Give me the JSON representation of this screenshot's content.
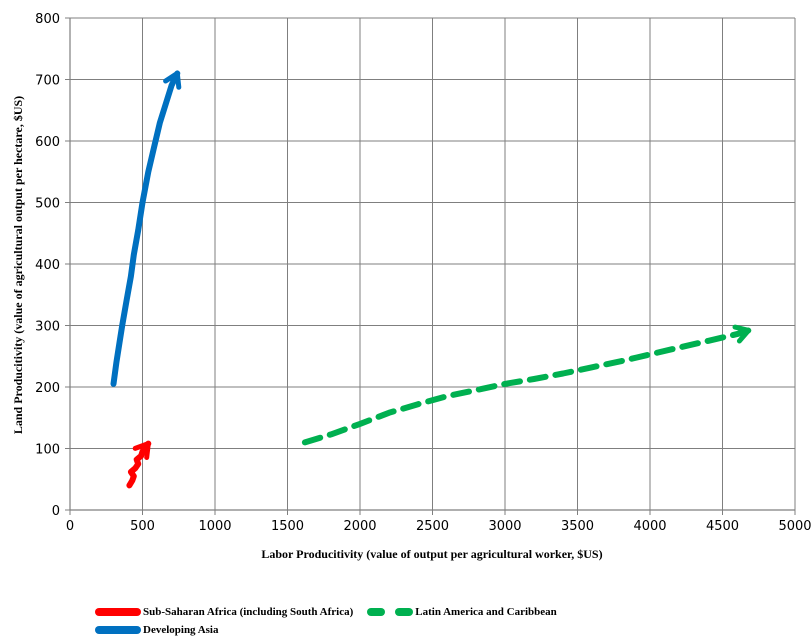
{
  "chart_data": {
    "type": "line",
    "xlabel": "Labor Producitivity (value of output per agricultural worker, $US)",
    "ylabel": "Land Producitivity (value of agricultural output per hectare, $US)",
    "xlim": [
      0,
      5000
    ],
    "ylim": [
      0,
      800
    ],
    "x_ticks": [
      0,
      500,
      1000,
      1500,
      2000,
      2500,
      3000,
      3500,
      4000,
      4500,
      5000
    ],
    "y_ticks": [
      0,
      100,
      200,
      300,
      400,
      500,
      600,
      700,
      800
    ],
    "grid": true,
    "legend_position": "bottom",
    "series": [
      {
        "name": "Sub-Saharan Africa (including South Africa)",
        "color": "#ff0000",
        "style": "solid",
        "arrow_end": true,
        "points": [
          [
            410,
            40
          ],
          [
            430,
            48
          ],
          [
            440,
            55
          ],
          [
            420,
            62
          ],
          [
            450,
            68
          ],
          [
            470,
            75
          ],
          [
            460,
            82
          ],
          [
            490,
            88
          ],
          [
            500,
            95
          ],
          [
            520,
            102
          ],
          [
            540,
            108
          ]
        ]
      },
      {
        "name": "Latin America and Caribbean",
        "color": "#00b050",
        "style": "dashed",
        "arrow_end": true,
        "points": [
          [
            1620,
            110
          ],
          [
            1800,
            123
          ],
          [
            2000,
            140
          ],
          [
            2200,
            158
          ],
          [
            2400,
            172
          ],
          [
            2600,
            185
          ],
          [
            2800,
            195
          ],
          [
            3000,
            205
          ],
          [
            3200,
            213
          ],
          [
            3400,
            222
          ],
          [
            3600,
            232
          ],
          [
            3800,
            242
          ],
          [
            4000,
            253
          ],
          [
            4200,
            264
          ],
          [
            4400,
            275
          ],
          [
            4600,
            286
          ],
          [
            4680,
            292
          ]
        ]
      },
      {
        "name": "Developing Asia",
        "color": "#0070c0",
        "style": "solid",
        "arrow_end": true,
        "points": [
          [
            300,
            205
          ],
          [
            320,
            240
          ],
          [
            340,
            270
          ],
          [
            360,
            300
          ],
          [
            390,
            340
          ],
          [
            420,
            380
          ],
          [
            440,
            415
          ],
          [
            470,
            455
          ],
          [
            500,
            500
          ],
          [
            540,
            550
          ],
          [
            580,
            590
          ],
          [
            620,
            630
          ],
          [
            660,
            660
          ],
          [
            700,
            690
          ],
          [
            740,
            710
          ]
        ]
      }
    ]
  }
}
